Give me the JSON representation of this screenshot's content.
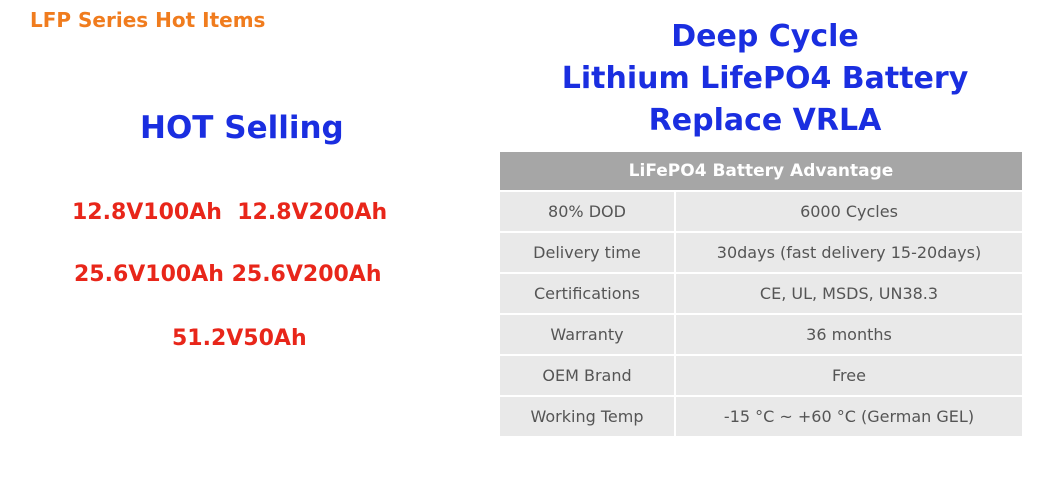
{
  "header": {
    "title": "LFP Series Hot Items"
  },
  "left": {
    "heading": "HOT Selling",
    "items": [
      "12.8V100Ah  12.8V200Ah",
      "25.6V100Ah 25.6V200Ah",
      "51.2V50Ah"
    ]
  },
  "right": {
    "heading": [
      "Deep Cycle",
      "Lithium LifePO4 Battery",
      "Replace VRLA"
    ],
    "table": {
      "title": "LiFePO4 Battery Advantage",
      "rows": [
        [
          "80% DOD",
          "6000 Cycles"
        ],
        [
          "Delivery time",
          "30days (fast delivery 15-20days)"
        ],
        [
          "Certifications",
          "CE, UL, MSDS, UN38.3"
        ],
        [
          "Warranty",
          "36 months"
        ],
        [
          "OEM Brand",
          "Free"
        ],
        [
          "Working Temp",
          "-15 °C ~ +60 °C (German GEL)"
        ]
      ]
    }
  }
}
